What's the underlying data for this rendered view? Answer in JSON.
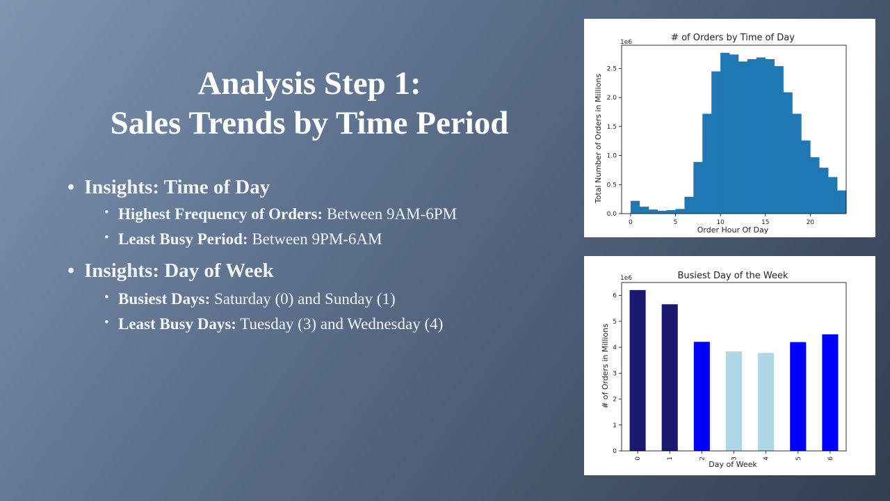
{
  "slide": {
    "title_line1": "Analysis Step 1:",
    "title_line2": "Sales Trends by Time Period"
  },
  "insights": [
    {
      "heading": "Insights: Time of Day",
      "items": [
        {
          "label": "Highest Frequency of Orders:",
          "text": " Between 9AM-6PM"
        },
        {
          "label": "Least Busy Period:",
          "text": " Between 9PM-6AM"
        }
      ]
    },
    {
      "heading": "Insights: Day of Week",
      "items": [
        {
          "label": "Busiest Days:",
          "text": " Saturday (0) and Sunday (1)"
        },
        {
          "label": "Least Busy Days:",
          "text": " Tuesday (3) and Wednesday (4)"
        }
      ]
    }
  ],
  "chart_data": [
    {
      "type": "bar",
      "title": "# of Orders by Time of Day",
      "xlabel": "Order Hour Of Day",
      "ylabel": "Total Number of Orders in Millions",
      "scale_note": "1e6",
      "x": [
        0,
        1,
        2,
        3,
        4,
        5,
        6,
        7,
        8,
        9,
        10,
        11,
        12,
        13,
        14,
        15,
        16,
        17,
        18,
        19,
        20,
        21,
        22,
        23
      ],
      "values": [
        0.22,
        0.12,
        0.07,
        0.05,
        0.06,
        0.08,
        0.29,
        0.89,
        1.72,
        2.45,
        2.77,
        2.74,
        2.62,
        2.66,
        2.69,
        2.66,
        2.54,
        2.09,
        1.72,
        1.26,
        0.97,
        0.79,
        0.63,
        0.4
      ],
      "xticks": [
        0,
        5,
        10,
        15,
        20
      ],
      "yticks": [
        0.0,
        0.5,
        1.0,
        1.5,
        2.0,
        2.5
      ],
      "xlim": [
        -1,
        24
      ],
      "ylim": [
        0,
        2.9
      ],
      "color": "#1f77b4"
    },
    {
      "type": "bar",
      "title": "Busiest Day of the Week",
      "xlabel": "Day of Week",
      "ylabel": "# of Orders in Millions",
      "scale_note": "1e6",
      "categories": [
        "0",
        "1",
        "2",
        "3",
        "4",
        "5",
        "6"
      ],
      "values": [
        6.21,
        5.66,
        4.21,
        3.84,
        3.78,
        4.2,
        4.5
      ],
      "colors": [
        "#191970",
        "#191970",
        "#0000ff",
        "#add8e6",
        "#add8e6",
        "#0000ff",
        "#0000ff"
      ],
      "yticks": [
        0,
        1,
        2,
        3,
        4,
        5,
        6
      ],
      "ylim": [
        0,
        6.5
      ]
    }
  ]
}
